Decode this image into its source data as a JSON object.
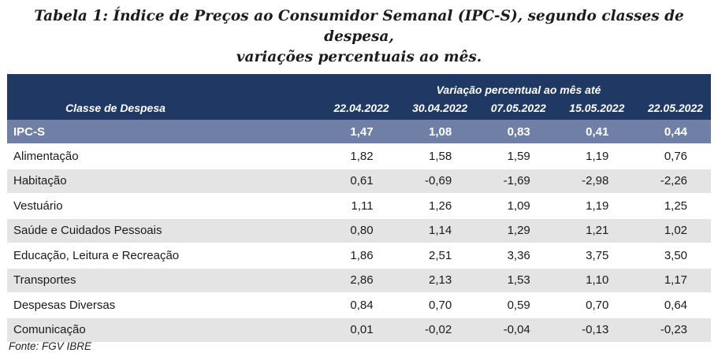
{
  "caption": {
    "label": "Tabela 1",
    "line1": "Índice de Preços ao Consumidor Semanal (IPC-S), segundo classes de despesa,",
    "line2": "variações percentuais ao mês."
  },
  "table": {
    "header_group": "Variação percentual ao mês até",
    "header_class": "Classe de Despesa",
    "dates": [
      "22.04.2022",
      "30.04.2022",
      "07.05.2022",
      "15.05.2022",
      "22.05.2022"
    ],
    "total": {
      "name": "IPC-S",
      "values": [
        "1,47",
        "1,08",
        "0,83",
        "0,41",
        "0,44"
      ]
    },
    "rows": [
      {
        "name": "Alimentação",
        "values": [
          "1,82",
          "1,58",
          "1,59",
          "1,19",
          "0,76"
        ]
      },
      {
        "name": "Habitação",
        "values": [
          "0,61",
          "-0,69",
          "-1,69",
          "-2,98",
          "-2,26"
        ]
      },
      {
        "name": "Vestuário",
        "values": [
          "1,11",
          "1,26",
          "1,09",
          "1,19",
          "1,25"
        ]
      },
      {
        "name": "Saúde e Cuidados Pessoais",
        "values": [
          "0,80",
          "1,14",
          "1,29",
          "1,21",
          "1,02"
        ]
      },
      {
        "name": "Educação, Leitura e Recreação",
        "values": [
          "1,86",
          "2,51",
          "3,36",
          "3,75",
          "3,50"
        ]
      },
      {
        "name": "Transportes",
        "values": [
          "2,86",
          "2,13",
          "1,53",
          "1,10",
          "1,17"
        ]
      },
      {
        "name": "Despesas Diversas",
        "values": [
          "0,84",
          "0,70",
          "0,59",
          "0,70",
          "0,64"
        ]
      },
      {
        "name": "Comunicação",
        "values": [
          "0,01",
          "-0,02",
          "-0,04",
          "-0,13",
          "-0,23"
        ]
      }
    ]
  },
  "source": "Fonte: FGV IBRE"
}
